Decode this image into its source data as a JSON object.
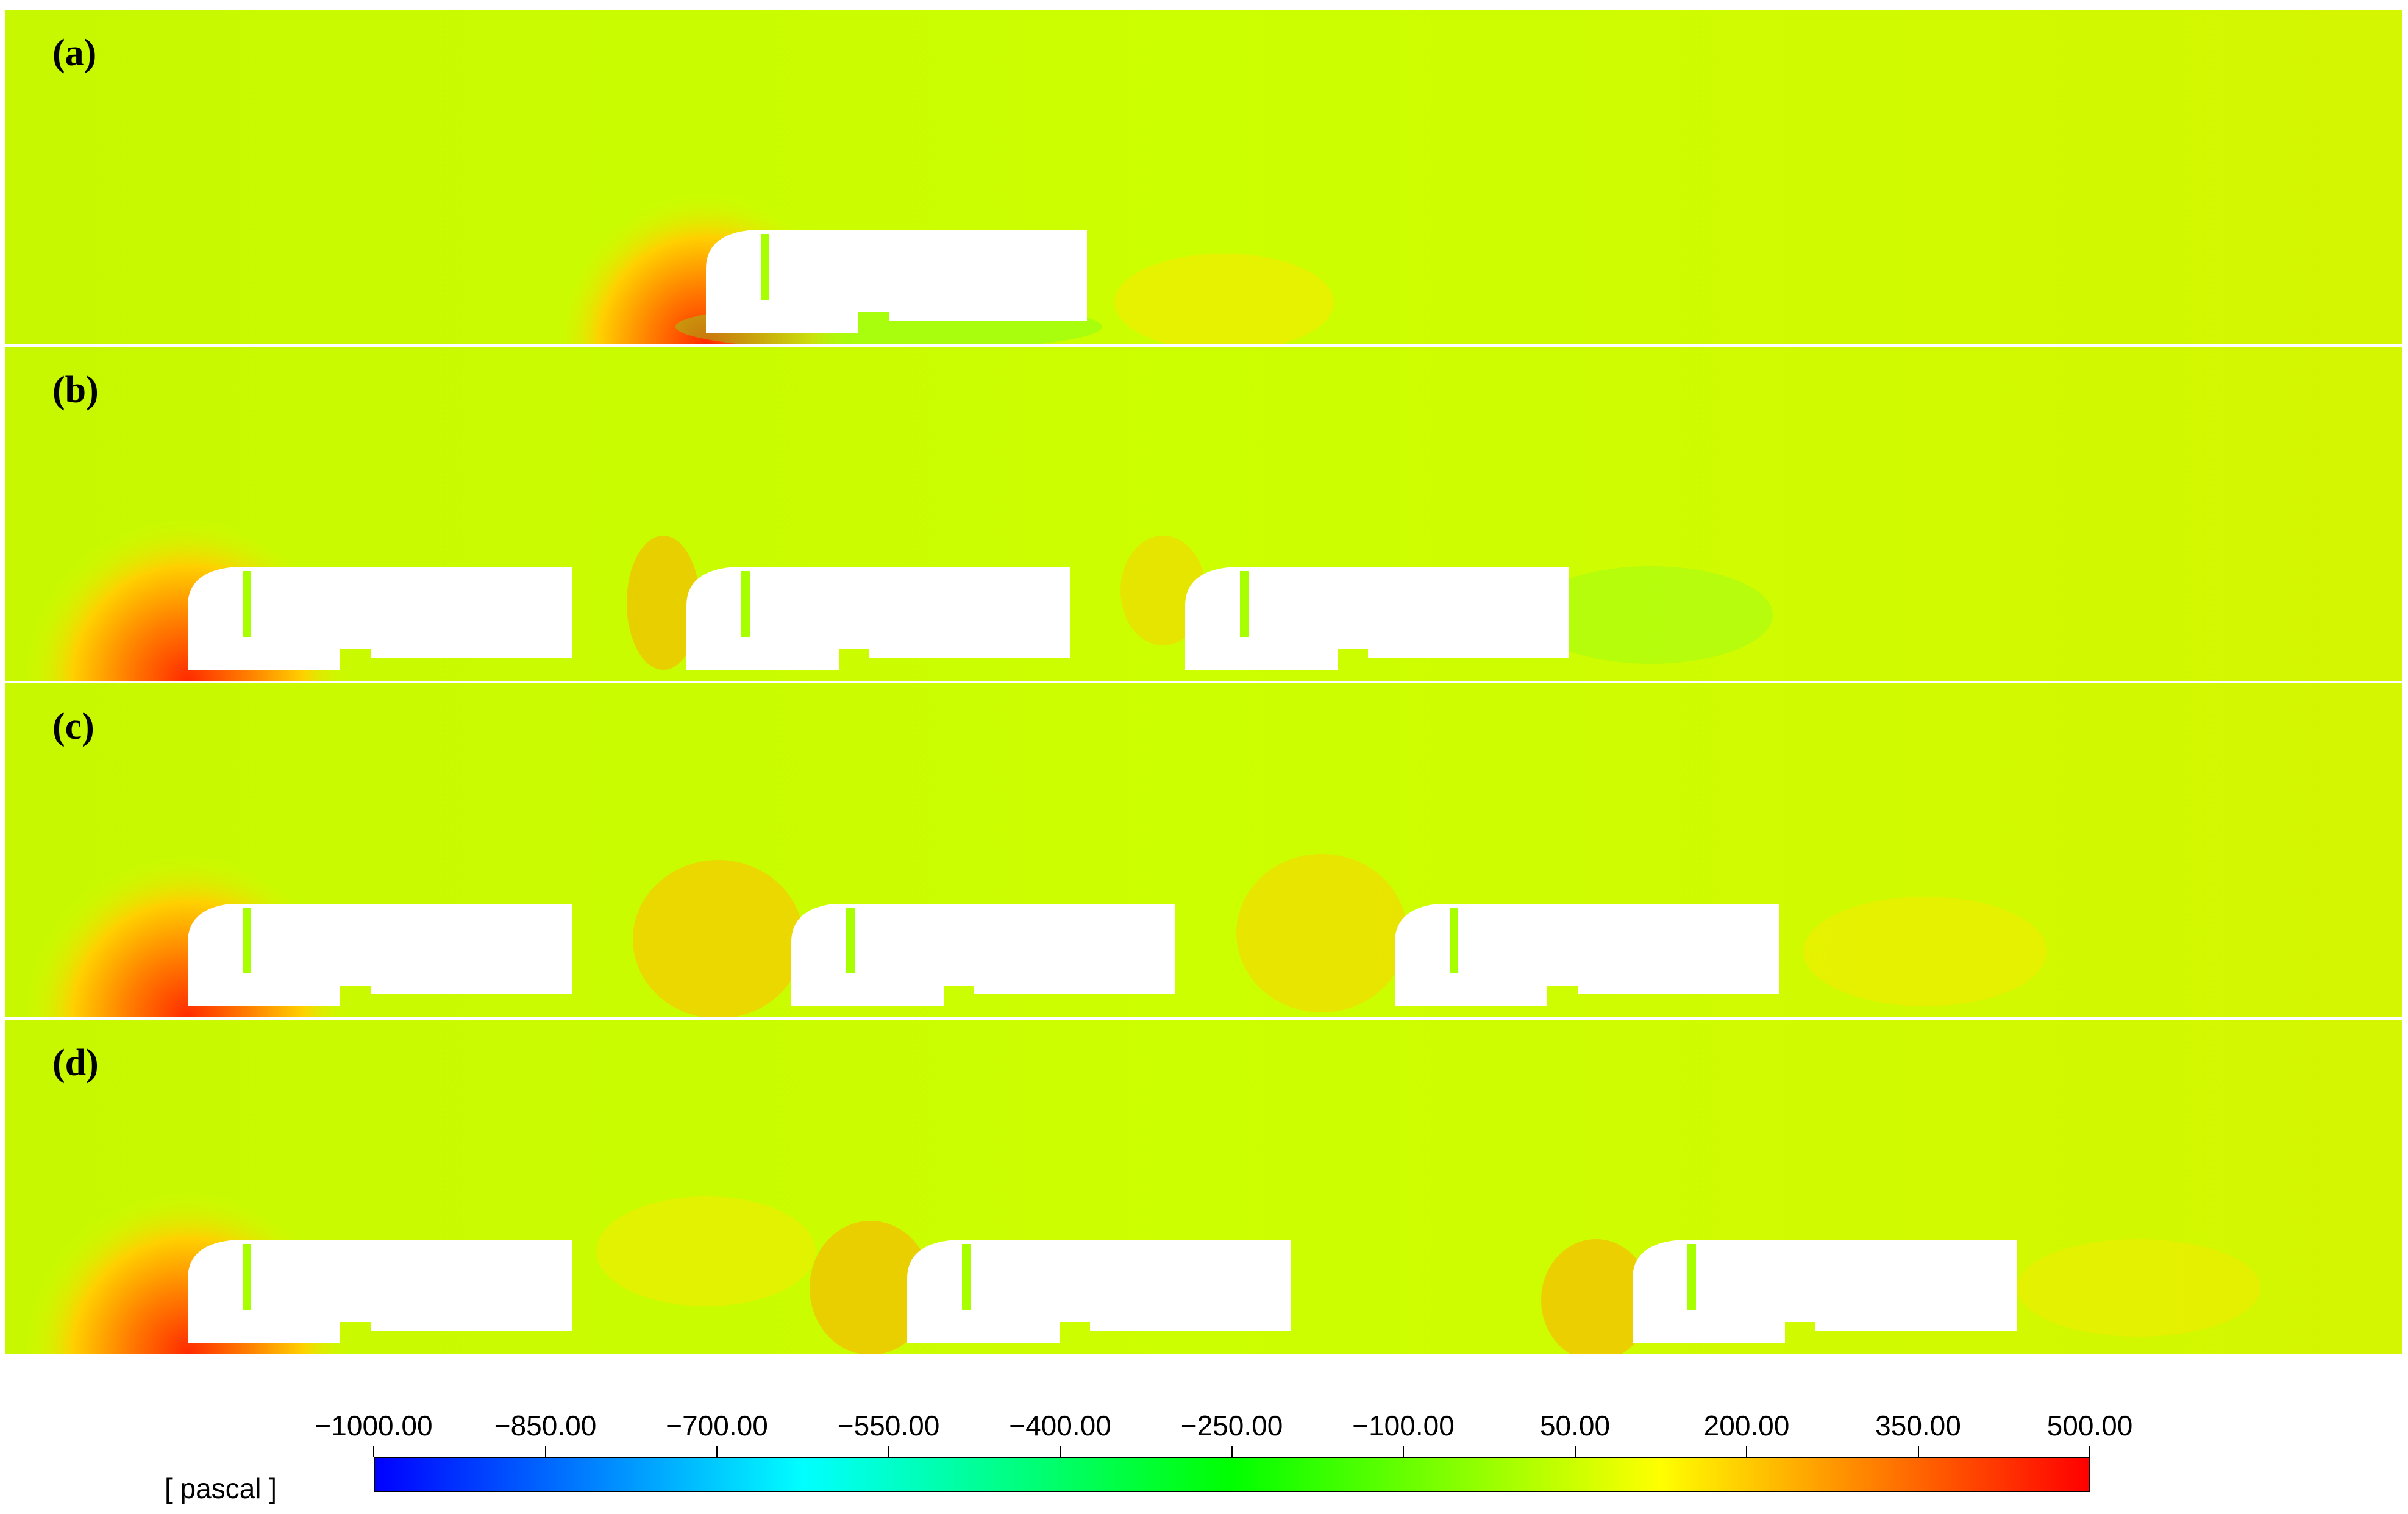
{
  "panels": [
    {
      "label": "(a)",
      "n_cars": 1
    },
    {
      "label": "(b)",
      "n_cars": 3
    },
    {
      "label": "(c)",
      "n_cars": 3
    },
    {
      "label": "(d)",
      "n_cars": 3
    }
  ],
  "legend": {
    "unit": "[ pascal ]",
    "ticks": [
      "−1000.00",
      "−850.00",
      "−700.00",
      "−550.00",
      "−400.00",
      "−250.00",
      "−100.00",
      "50.00",
      "200.00",
      "350.00",
      "500.00"
    ],
    "range": [
      -1000,
      500
    ],
    "colormap": [
      "#0000ff",
      "#00ffff",
      "#00ff00",
      "#ffff00",
      "#ff0000"
    ]
  },
  "colors": {
    "background_field": "#ccff00",
    "high_pressure": "#ff3a00",
    "low_pressure": "#33ff33",
    "vehicle": "#ffffff"
  }
}
